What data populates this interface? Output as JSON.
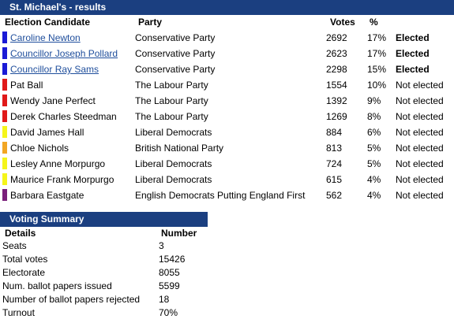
{
  "header": {
    "title": "St. Michael's - results"
  },
  "results": {
    "columns": {
      "candidate": "Election Candidate",
      "party": "Party",
      "votes": "Votes",
      "percent": "%"
    },
    "rows": [
      {
        "candidate": "Caroline Newton",
        "linked": true,
        "party": "Conservative Party",
        "votes": "2692",
        "percent": "17%",
        "status": "Elected",
        "elected": true,
        "color": "#1a1ad6"
      },
      {
        "candidate": "Councillor Joseph Pollard",
        "linked": true,
        "party": "Conservative Party",
        "votes": "2623",
        "percent": "17%",
        "status": "Elected",
        "elected": true,
        "color": "#1a1ad6"
      },
      {
        "candidate": "Councillor Ray Sams",
        "linked": true,
        "party": "Conservative Party",
        "votes": "2298",
        "percent": "15%",
        "status": "Elected",
        "elected": true,
        "color": "#1a1ad6"
      },
      {
        "candidate": "Pat Ball",
        "linked": false,
        "party": "The Labour Party",
        "votes": "1554",
        "percent": "10%",
        "status": "Not elected",
        "elected": false,
        "color": "#e01919"
      },
      {
        "candidate": "Wendy Jane Perfect",
        "linked": false,
        "party": "The Labour Party",
        "votes": "1392",
        "percent": "9%",
        "status": "Not elected",
        "elected": false,
        "color": "#e01919"
      },
      {
        "candidate": "Derek Charles Steedman",
        "linked": false,
        "party": "The Labour Party",
        "votes": "1269",
        "percent": "8%",
        "status": "Not elected",
        "elected": false,
        "color": "#e01919"
      },
      {
        "candidate": "David James Hall",
        "linked": false,
        "party": "Liberal Democrats",
        "votes": "884",
        "percent": "6%",
        "status": "Not elected",
        "elected": false,
        "color": "#f5f51a"
      },
      {
        "candidate": "Chloe Nichols",
        "linked": false,
        "party": "British National Party",
        "votes": "813",
        "percent": "5%",
        "status": "Not elected",
        "elected": false,
        "color": "#f2a623"
      },
      {
        "candidate": "Lesley Anne Morpurgo",
        "linked": false,
        "party": "Liberal Democrats",
        "votes": "724",
        "percent": "5%",
        "status": "Not elected",
        "elected": false,
        "color": "#f5f51a"
      },
      {
        "candidate": "Maurice Frank Morpurgo",
        "linked": false,
        "party": "Liberal Democrats",
        "votes": "615",
        "percent": "4%",
        "status": "Not elected",
        "elected": false,
        "color": "#f5f51a"
      },
      {
        "candidate": "Barbara Eastgate",
        "linked": false,
        "party": "English Democrats Putting England First",
        "votes": "562",
        "percent": "4%",
        "status": "Not elected",
        "elected": false,
        "color": "#7a1f7a"
      }
    ]
  },
  "summary": {
    "title": "Voting Summary",
    "columns": {
      "details": "Details",
      "number": "Number"
    },
    "rows": [
      {
        "label": "Seats",
        "value": "3"
      },
      {
        "label": "Total votes",
        "value": "15426"
      },
      {
        "label": "Electorate",
        "value": "8055"
      },
      {
        "label": "Num. ballot papers issued",
        "value": "5599"
      },
      {
        "label": "Number of ballot papers rejected",
        "value": "18"
      },
      {
        "label": "Turnout",
        "value": "70%"
      }
    ]
  }
}
